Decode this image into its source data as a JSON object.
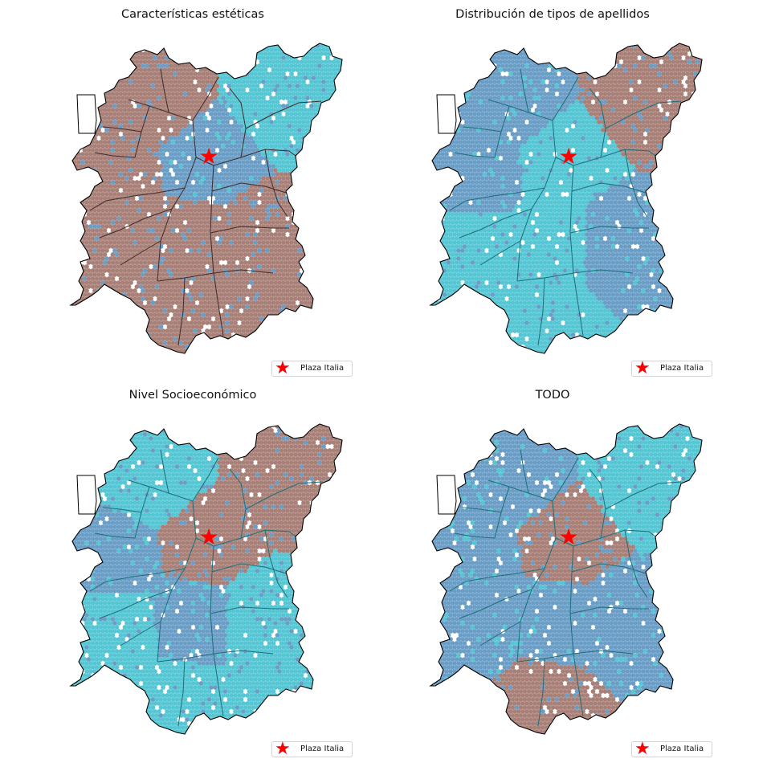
{
  "figure": {
    "colors": {
      "brown": "#a88078",
      "cyan": "#55c6d3",
      "blue": "#6a9ec6",
      "outline": "#000000",
      "commune_line_dark": "#3f2b2b",
      "commune_line_teal": "#1b6f7a",
      "marker": "#ff0000"
    },
    "panels": [
      {
        "id": "esteticas",
        "title": "Características estéticas",
        "legend_label": "Plaza Italia",
        "marker_icon": "red-star-icon",
        "dominant_class": "brown",
        "regions": {
          "nw": "brown",
          "ne": "cyan",
          "center": "blue",
          "w": "brown",
          "s": "brown",
          "sw": "brown",
          "se": "brown",
          "far_s": "brown"
        }
      },
      {
        "id": "apellidos",
        "title": "Distribución de tipos de apellidos",
        "legend_label": "Plaza Italia",
        "marker_icon": "red-star-icon",
        "dominant_class": "cyan",
        "regions": {
          "nw": "blue",
          "ne": "brown",
          "center": "cyan",
          "w": "blue",
          "s": "cyan",
          "sw": "cyan",
          "se": "blue",
          "far_s": "cyan"
        }
      },
      {
        "id": "socioeconomico",
        "title": "Nivel Socioeconómico",
        "legend_label": "Plaza Italia",
        "marker_icon": "red-star-icon",
        "dominant_class": "cyan",
        "regions": {
          "nw": "cyan",
          "ne": "brown",
          "center": "brown",
          "w": "blue",
          "s": "blue",
          "sw": "cyan",
          "se": "cyan",
          "far_s": "cyan"
        }
      },
      {
        "id": "todo",
        "title": "TODO",
        "legend_label": "Plaza Italia",
        "marker_icon": "red-star-icon",
        "dominant_class": "blue",
        "regions": {
          "nw": "blue",
          "ne": "cyan",
          "center": "brown",
          "w": "blue",
          "s": "blue",
          "sw": "blue",
          "se": "blue",
          "far_s": "brown"
        }
      }
    ]
  }
}
